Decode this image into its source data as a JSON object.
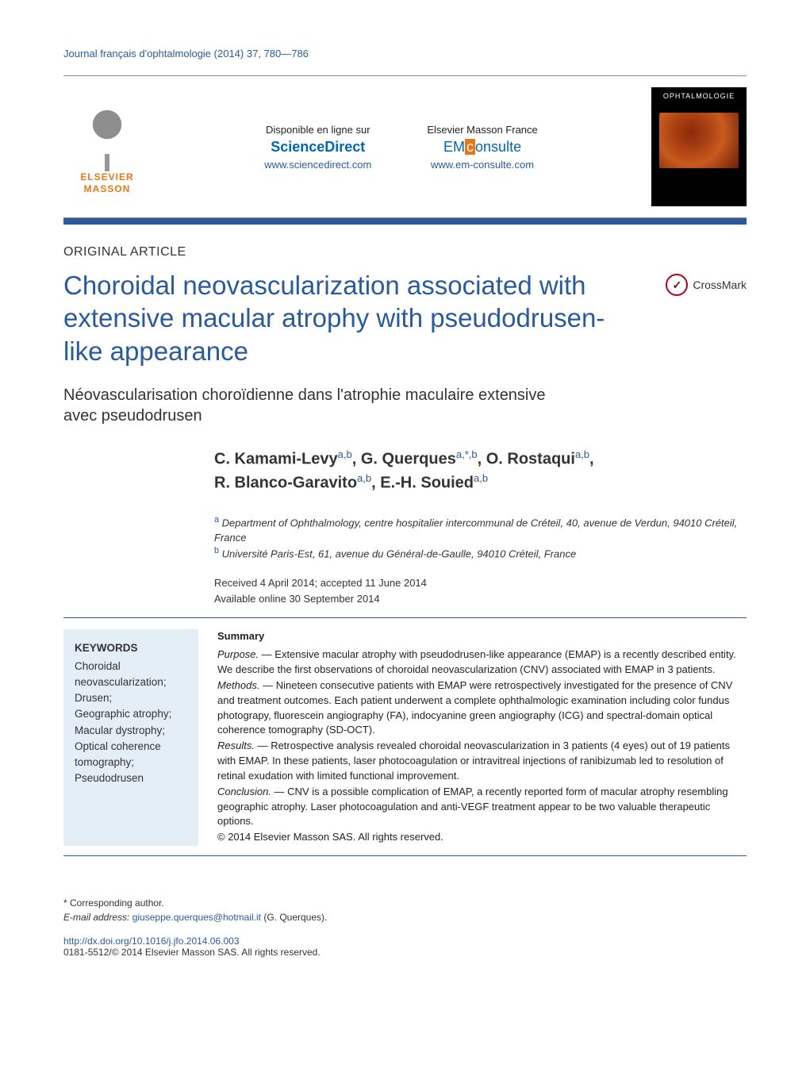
{
  "journal_ref": "Journal français d'ophtalmologie (2014) 37, 780—786",
  "header": {
    "disponible": "Disponible en ligne sur",
    "scidirect": "ScienceDirect",
    "scidirect_url": "www.sciencedirect.com",
    "emf": "Elsevier Masson France",
    "emc_prefix": "EM",
    "emc_mid": "c",
    "emc_suffix": "onsulte",
    "emc_url": "www.em-consulte.com",
    "elsevier": "ELSEVIER",
    "masson": "MASSON",
    "cover_title": "OPHTALMOLOGIE"
  },
  "article_type": "ORIGINAL ARTICLE",
  "title": "Choroidal neovascularization associated with extensive macular atrophy with pseudodrusen-like appearance",
  "crossmark_label": "CrossMark",
  "subtitle": "Néovascularisation choroïdienne dans l'atrophie maculaire extensive avec pseudodrusen",
  "authors_html": "C. Kamami-Levy|a,b|, G. Querques|a,*,b|, O. Rostaqui|a,b|, R. Blanco-Garavito|a,b|, E.-H. Souied|a,b|",
  "authors_line1": "C. Kamami-Levy",
  "authors_line1_sup": "a,b",
  "authors_line1b": ", G. Querques",
  "authors_line1b_sup": "a,*,b",
  "authors_line1c": ", O. Rostaqui",
  "authors_line1c_sup": "a,b",
  "authors_line1c_end": ",",
  "authors_line2a": "R. Blanco-Garavito",
  "authors_line2a_sup": "a,b",
  "authors_line2b": ", E.-H. Souied",
  "authors_line2b_sup": "a,b",
  "affil_a_sup": "a",
  "affil_a": " Department of Ophthalmology, centre hospitalier intercommunal de Créteil, 40, avenue de Verdun, 94010 Créteil, France",
  "affil_b_sup": "b",
  "affil_b": " Université Paris-Est, 61, avenue du Général-de-Gaulle, 94010 Créteil, France",
  "received": "Received 4 April 2014; accepted 11 June 2014",
  "available": "Available online 30 September 2014",
  "keywords": {
    "heading": "KEYWORDS",
    "list": "Choroidal neovascularization;\nDrusen;\nGeographic atrophy;\nMacular dystrophy;\nOptical coherence tomography;\nPseudodrusen"
  },
  "summary_head": "Summary",
  "purpose_lead": "Purpose.",
  "purpose": " — Extensive macular atrophy with pseudodrusen-like appearance (EMAP) is a recently described entity. We describe the first observations of choroidal neovascularization (CNV) associated with EMAP in 3 patients.",
  "methods_lead": "Methods.",
  "methods": " — Nineteen consecutive patients with EMAP were retrospectively investigated for the presence of CNV and treatment outcomes. Each patient underwent a complete ophthalmologic examination including color fundus photograpy, fluorescein angiography (FA), indocyanine green angiography (ICG) and spectral-domain optical coherence tomography (SD-OCT).",
  "results_lead": "Results.",
  "results": " — Retrospective analysis revealed choroidal neovascularization in 3 patients (4 eyes) out of 19 patients with EMAP. In these patients, laser photocoagulation or intravitreal injections of ranibizumab led to resolution of retinal exudation with limited functional improvement.",
  "conclusion_lead": "Conclusion.",
  "conclusion": " — CNV is a possible complication of EMAP, a recently reported form of macular atrophy resembling geographic atrophy. Laser photocoagulation and anti-VEGF treatment appear to be two valuable therapeutic options.",
  "copyright": "© 2014 Elsevier Masson SAS. All rights reserved.",
  "corr_label": "* Corresponding author.",
  "email_label": "E-mail address: ",
  "email": "giuseppe.querques@hotmail.it",
  "email_tail": " (G. Querques).",
  "doi": "http://dx.doi.org/10.1016/j.jfo.2014.06.003",
  "issn_line": "0181-5512/© 2014 Elsevier Masson SAS. All rights reserved.",
  "colors": {
    "brand_blue": "#2a5a9e",
    "brand_orange": "#e67817",
    "kw_bg": "#e4eef6"
  }
}
